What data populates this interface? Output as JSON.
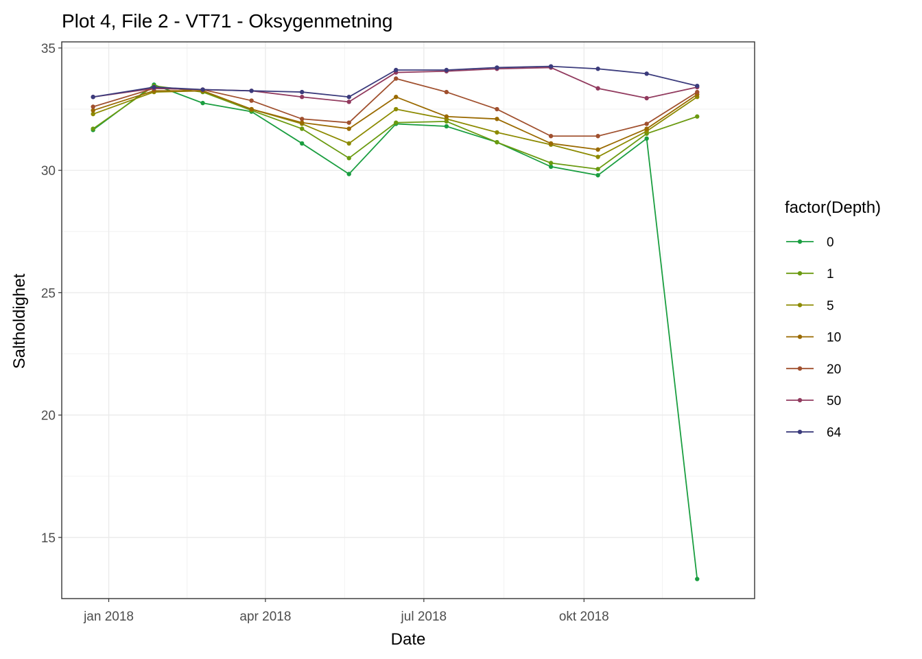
{
  "chart_data": {
    "type": "line",
    "title": "Plot 4, File 2 - VT71  -  Oksygenmetning",
    "xlabel": "Date",
    "ylabel": "Saltholdighet",
    "xlim": [
      "2017-12-05",
      "2019-01-07"
    ],
    "ylim": [
      12.5,
      35.25
    ],
    "x_ticks": [
      {
        "label": "jan 2018",
        "date": "2018-01-01"
      },
      {
        "label": "apr 2018",
        "date": "2018-04-01"
      },
      {
        "label": "jul 2018",
        "date": "2018-07-01"
      },
      {
        "label": "okt 2018",
        "date": "2018-10-01"
      }
    ],
    "y_ticks": [
      15,
      20,
      25,
      30,
      35
    ],
    "grid": true,
    "legend": {
      "title": "factor(Depth)",
      "placement": "right"
    },
    "dates": [
      "2017-12-23",
      "2018-01-27",
      "2018-02-24",
      "2018-03-24",
      "2018-04-22",
      "2018-05-19",
      "2018-06-15",
      "2018-07-14",
      "2018-08-12",
      "2018-09-12",
      "2018-10-09",
      "2018-11-06",
      "2018-12-05"
    ],
    "series": [
      {
        "name": "0",
        "color": "#1a9e40",
        "values": [
          31.65,
          33.5,
          32.75,
          32.4,
          31.1,
          29.85,
          31.9,
          31.8,
          31.15,
          30.15,
          29.8,
          31.3,
          13.3
        ]
      },
      {
        "name": "1",
        "color": "#6a9a10",
        "values": [
          31.7,
          33.45,
          33.2,
          32.45,
          31.7,
          30.5,
          31.95,
          32.0,
          31.15,
          30.3,
          30.05,
          31.5,
          32.2
        ]
      },
      {
        "name": "5",
        "color": "#8c8a00",
        "values": [
          32.3,
          33.2,
          33.25,
          32.5,
          31.9,
          31.1,
          32.5,
          32.1,
          31.55,
          31.05,
          30.55,
          31.6,
          33.0
        ]
      },
      {
        "name": "10",
        "color": "#9a6a00",
        "values": [
          32.45,
          33.25,
          33.25,
          32.5,
          31.95,
          31.7,
          33.0,
          32.2,
          32.1,
          31.1,
          30.85,
          31.7,
          33.1
        ]
      },
      {
        "name": "20",
        "color": "#a0502e",
        "values": [
          32.6,
          33.35,
          33.3,
          32.85,
          32.1,
          31.95,
          33.75,
          33.2,
          32.5,
          31.4,
          31.4,
          31.9,
          33.2
        ]
      },
      {
        "name": "50",
        "color": "#913a5e",
        "values": [
          33.0,
          33.35,
          33.3,
          33.25,
          33.0,
          32.8,
          34.0,
          34.05,
          34.15,
          34.2,
          33.35,
          32.95,
          33.4
        ]
      },
      {
        "name": "64",
        "color": "#3b3b7c",
        "values": [
          33.0,
          33.4,
          33.3,
          33.25,
          33.2,
          33.0,
          34.1,
          34.1,
          34.2,
          34.25,
          34.15,
          33.95,
          33.45
        ]
      }
    ]
  }
}
